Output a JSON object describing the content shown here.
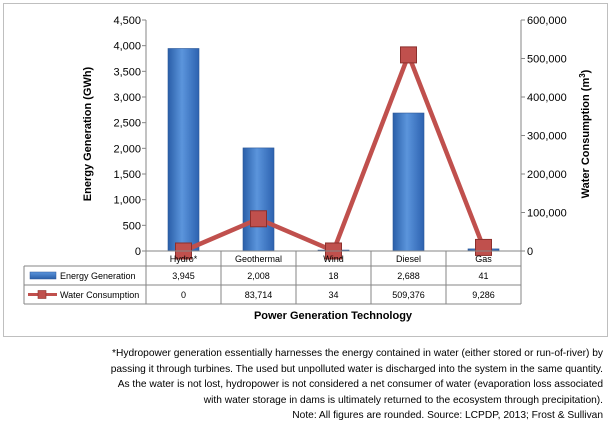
{
  "chart_data": {
    "type": "bar-line combo",
    "categories": [
      "Hydro*",
      "Geothermal",
      "Wind",
      "Diesel",
      "Gas"
    ],
    "series": [
      {
        "name": "Energy Generation",
        "kind": "bar",
        "axis": "left",
        "values": [
          3945,
          2008,
          18,
          2688,
          41
        ],
        "color": "#3a77c9"
      },
      {
        "name": "Water Consumption",
        "kind": "line",
        "axis": "right",
        "values": [
          0,
          83714,
          34,
          509376,
          9286
        ],
        "color": "#c0504d"
      }
    ],
    "table_values": {
      "Energy Generation": [
        "3,945",
        "2,008",
        "18",
        "2,688",
        "41"
      ],
      "Water Consumption": [
        "0",
        "83,714",
        "34",
        "509,376",
        "9,286"
      ]
    },
    "xlabel": "Power Generation Technology",
    "ylabel_left": "Energy Generation (GWh)",
    "ylabel_right": "Water Consumption (m3)",
    "ylim_left": [
      0,
      4500
    ],
    "yticks_left": [
      "0",
      "500",
      "1,000",
      "1,500",
      "2,000",
      "2,500",
      "3,000",
      "3,500",
      "4,000",
      "4,500"
    ],
    "ylim_right": [
      0,
      600000
    ],
    "yticks_right": [
      "0",
      "100,000",
      "200,000",
      "300,000",
      "400,000",
      "500,000",
      "600,000"
    ],
    "data_table": true
  },
  "caption": {
    "lines": [
      "*Hydropower generation essentially harnesses the energy contained in water (either stored or run-of-river) by",
      "passing it through turbines. The used but unpolluted water is discharged into the system in the same quantity.",
      "As the water is not lost, hydropower is not considered a net consumer of water (evaporation loss associated",
      "with water storage in dams is ultimately returned to the ecosystem through precipitation).",
      "Note: All figures are rounded.  Source: LCPDP, 2013; Frost & Sullivan"
    ]
  }
}
